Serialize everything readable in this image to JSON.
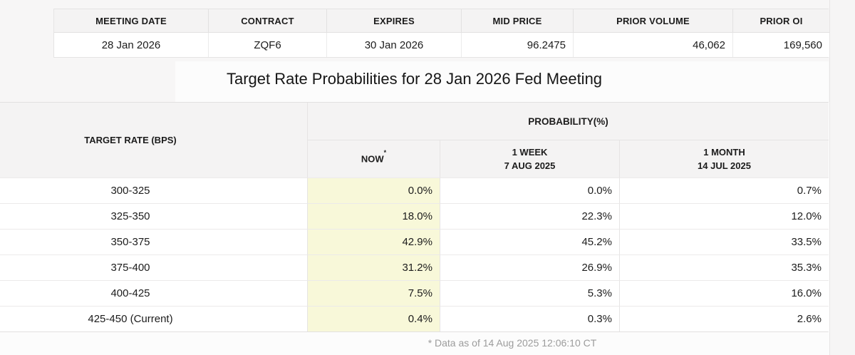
{
  "contract_table": {
    "headers": {
      "meeting_date": "MEETING DATE",
      "contract": "CONTRACT",
      "expires": "EXPIRES",
      "mid_price": "MID PRICE",
      "prior_volume": "PRIOR VOLUME",
      "prior_oi": "PRIOR OI"
    },
    "row": {
      "meeting_date": "28 Jan 2026",
      "contract": "ZQF6",
      "expires": "30 Jan 2026",
      "mid_price": "96.2475",
      "prior_volume": "46,062",
      "prior_oi": "169,560"
    }
  },
  "title": "Target Rate Probabilities for 28 Jan 2026 Fed Meeting",
  "probability_table": {
    "rate_header": "TARGET RATE (BPS)",
    "group_header": "PROBABILITY(%)",
    "col_now": "NOW",
    "col_now_asterisk": "*",
    "col_week_line1": "1 WEEK",
    "col_week_line2": "7 AUG 2025",
    "col_month_line1": "1 MONTH",
    "col_month_line2": "14 JUL 2025",
    "rows": [
      {
        "rate": "300-325",
        "now": "0.0%",
        "week": "0.0%",
        "month": "0.7%"
      },
      {
        "rate": "325-350",
        "now": "18.0%",
        "week": "22.3%",
        "month": "12.0%"
      },
      {
        "rate": "350-375",
        "now": "42.9%",
        "week": "45.2%",
        "month": "33.5%"
      },
      {
        "rate": "375-400",
        "now": "31.2%",
        "week": "26.9%",
        "month": "35.3%"
      },
      {
        "rate": "400-425",
        "now": "7.5%",
        "week": "5.3%",
        "month": "16.0%"
      },
      {
        "rate": "425-450 (Current)",
        "now": "0.4%",
        "week": "0.3%",
        "month": "2.6%"
      }
    ]
  },
  "footnote": "* Data as of 14 Aug 2025 12:06:10 CT",
  "colors": {
    "now_highlight": "#f8f8d9",
    "header_bg": "#f4f3f3",
    "page_bg": "#f7f6f6"
  }
}
